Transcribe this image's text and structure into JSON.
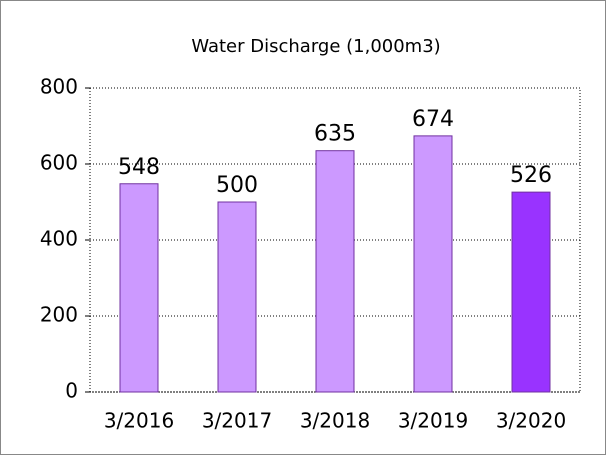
{
  "chart_data": {
    "type": "bar",
    "title": "Water Discharge (1,000m3)",
    "categories": [
      "3/2016",
      "3/2017",
      "3/2018",
      "3/2019",
      "3/2020"
    ],
    "values": [
      548,
      500,
      635,
      674,
      526
    ],
    "colors": [
      "#cc99ff",
      "#cc99ff",
      "#cc99ff",
      "#cc99ff",
      "#9933ff"
    ],
    "ylim": [
      0,
      800
    ],
    "yticks": [
      0,
      200,
      400,
      600,
      800
    ],
    "grid": true
  }
}
